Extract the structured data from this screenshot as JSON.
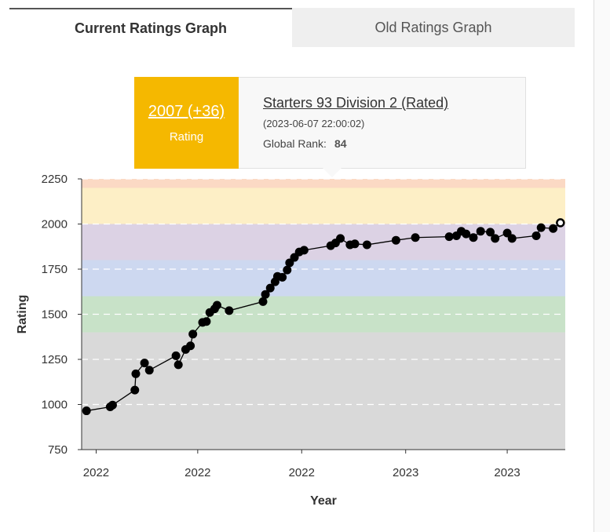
{
  "tabs": [
    {
      "label": "Current Ratings Graph",
      "active": true
    },
    {
      "label": "Old Ratings Graph",
      "active": false
    }
  ],
  "tooltip": {
    "rating": "2007 (+36)",
    "rating_label": "Rating",
    "contest": "Starters 93 Division 2 (Rated)",
    "date": "(2023-06-07 22:00:02)",
    "rank_label": "Global Rank:",
    "rank_value": "84",
    "accent": "#f5b800"
  },
  "chart_data": {
    "type": "line",
    "xlabel": "Year",
    "ylabel": "Rating",
    "ylim": [
      750,
      2250
    ],
    "yticks": [
      750,
      1000,
      1250,
      1500,
      1750,
      2000,
      2250
    ],
    "xtick_labels": [
      "2022",
      "2022",
      "2022",
      "2023",
      "2023"
    ],
    "x_index_range": [
      0,
      100
    ],
    "xtick_positions": [
      3,
      24,
      45.5,
      67,
      88
    ],
    "bands": [
      {
        "from": 750,
        "to": 1400,
        "color": "#d9d9d9"
      },
      {
        "from": 1400,
        "to": 1600,
        "color": "#c8e2c8"
      },
      {
        "from": 1600,
        "to": 1800,
        "color": "#cdd8f0"
      },
      {
        "from": 1800,
        "to": 2000,
        "color": "#dcd2e4"
      },
      {
        "from": 2000,
        "to": 2200,
        "color": "#fdefc6"
      },
      {
        "from": 2200,
        "to": 2250,
        "color": "#fbd9c4"
      }
    ],
    "series": [
      {
        "values": [
          [
            1,
            965
          ],
          [
            5.9,
            987
          ],
          [
            6.4,
            997
          ],
          [
            11,
            1080
          ],
          [
            11.2,
            1170
          ],
          [
            13,
            1230
          ],
          [
            14,
            1190
          ],
          [
            19.5,
            1270
          ],
          [
            20,
            1220
          ],
          [
            21.5,
            1305
          ],
          [
            22.5,
            1325
          ],
          [
            23,
            1390
          ],
          [
            25,
            1455
          ],
          [
            25.8,
            1460
          ],
          [
            26.5,
            1510
          ],
          [
            27.5,
            1530
          ],
          [
            28,
            1550
          ],
          [
            30.5,
            1520
          ],
          [
            37.5,
            1570
          ],
          [
            38,
            1610
          ],
          [
            39,
            1645
          ],
          [
            40,
            1680
          ],
          [
            40.5,
            1710
          ],
          [
            41.5,
            1705
          ],
          [
            42.5,
            1745
          ],
          [
            43,
            1785
          ],
          [
            44,
            1815
          ],
          [
            45,
            1845
          ],
          [
            46,
            1855
          ],
          [
            51.5,
            1880
          ],
          [
            52.5,
            1895
          ],
          [
            53.5,
            1920
          ],
          [
            55.5,
            1885
          ],
          [
            56.5,
            1890
          ],
          [
            59,
            1885
          ],
          [
            65,
            1910
          ],
          [
            69,
            1925
          ],
          [
            76,
            1930
          ],
          [
            77.5,
            1935
          ],
          [
            78.5,
            1960
          ],
          [
            79.5,
            1945
          ],
          [
            81,
            1925
          ],
          [
            82.5,
            1960
          ],
          [
            84.5,
            1955
          ],
          [
            85.5,
            1920
          ],
          [
            88,
            1950
          ],
          [
            89,
            1920
          ],
          [
            94,
            1935
          ],
          [
            95,
            1980
          ],
          [
            97.5,
            1975
          ],
          [
            99,
            2007
          ]
        ]
      }
    ]
  }
}
